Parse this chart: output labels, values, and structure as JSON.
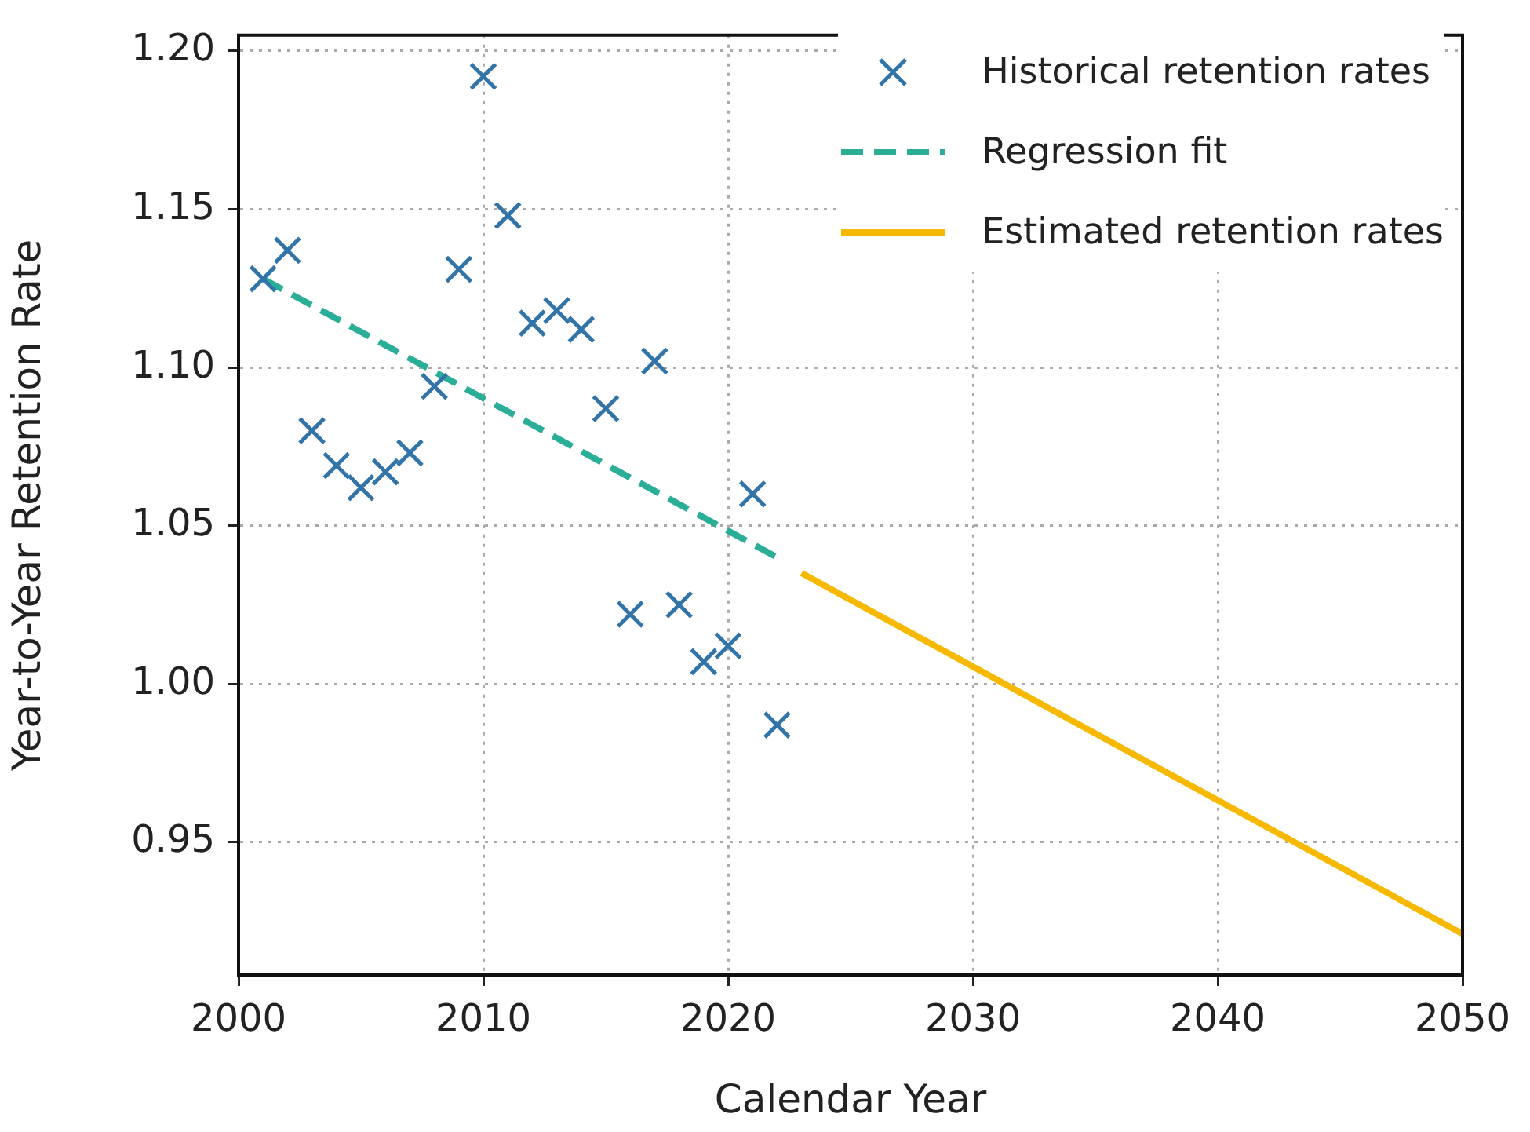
{
  "chart_data": {
    "type": "scatter",
    "xlabel": "Calendar Year",
    "ylabel": "Year-to-Year Retention Rate",
    "xlim": [
      2000,
      2050
    ],
    "xticks": [
      2000,
      2010,
      2020,
      2030,
      2040,
      2050
    ],
    "ylim": [
      0.908,
      1.205
    ],
    "yticks": [
      0.95,
      {
        "value": 1,
        "label": "1.00"
      },
      1.05,
      {
        "value": 1.1,
        "label": "1.10"
      },
      1.15,
      {
        "value": 1.2,
        "label": "1.20"
      }
    ],
    "grid": true,
    "legend": "top right",
    "series": [
      {
        "name": "Historical retention rates",
        "type": "scatter",
        "marker": "cross",
        "color": "#3274a8",
        "x": [
          2001,
          2002,
          2003,
          2004,
          2005,
          2006,
          2007,
          2008,
          2009,
          2010,
          2011,
          2012,
          2013,
          2014,
          2015,
          2016,
          2017,
          2018,
          2019,
          2020,
          2021,
          2022
        ],
        "values": [
          1.128,
          1.137,
          1.08,
          1.069,
          1.062,
          1.067,
          1.073,
          1.094,
          1.131,
          1.192,
          1.148,
          1.114,
          1.118,
          1.112,
          1.087,
          1.022,
          1.102,
          1.025,
          1.007,
          1.012,
          1.06,
          0.987
        ]
      },
      {
        "name": "Regression fit",
        "type": "line",
        "line_style": "dashed",
        "color": "#2aae98",
        "x": [
          2001,
          2022
        ],
        "values": [
          1.128,
          1.04
        ]
      },
      {
        "name": "Estimated retention rates",
        "type": "line",
        "line_style": "solid",
        "color": "#f7b900",
        "x": [
          2023,
          2050
        ],
        "values": [
          1.035,
          0.921
        ]
      }
    ]
  }
}
